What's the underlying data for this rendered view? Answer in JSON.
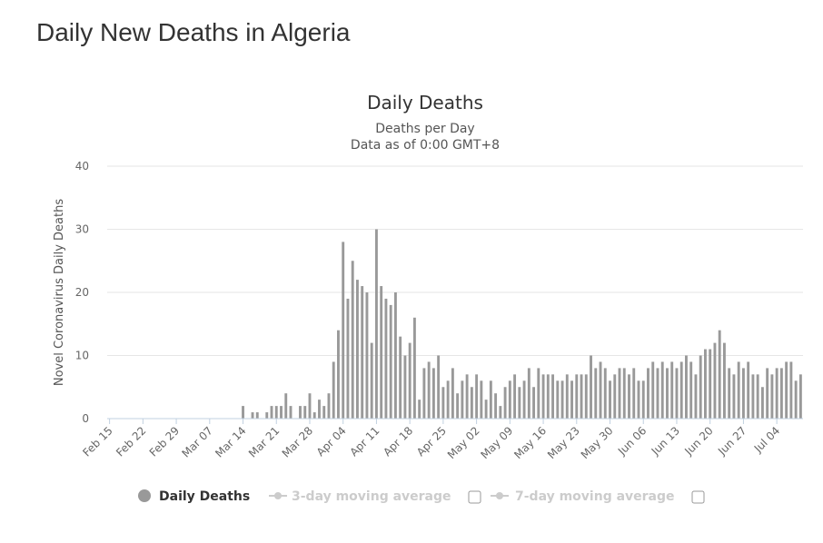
{
  "page": {
    "title": "Daily New Deaths in Algeria"
  },
  "chart_data": {
    "type": "bar",
    "title": "Daily Deaths",
    "subtitle_lines": [
      "Deaths per Day",
      "Data as of 0:00 GMT+8"
    ],
    "xlabel": "",
    "ylabel": "Novel Coronavirus Daily Deaths",
    "ylim": [
      0,
      40
    ],
    "yticks": [
      0,
      10,
      20,
      30,
      40
    ],
    "grid": true,
    "x_start_label": "Feb 15",
    "xtick_labels": [
      "Feb 15",
      "Feb 22",
      "Feb 29",
      "Mar 07",
      "Mar 14",
      "Mar 21",
      "Mar 28",
      "Apr 04",
      "Apr 11",
      "Apr 18",
      "Apr 25",
      "May 02",
      "May 09",
      "May 16",
      "May 23",
      "May 30",
      "Jun 06",
      "Jun 13",
      "Jun 20",
      "Jun 27",
      "Jul 04"
    ],
    "series": [
      {
        "name": "Daily Deaths",
        "color": "#999999",
        "values": [
          0,
          0,
          0,
          0,
          0,
          0,
          0,
          0,
          0,
          0,
          0,
          0,
          0,
          0,
          0,
          0,
          0,
          0,
          0,
          0,
          0,
          0,
          0,
          0,
          0,
          0,
          0,
          0,
          2,
          0,
          1,
          1,
          0,
          1,
          2,
          2,
          2,
          4,
          2,
          0,
          2,
          2,
          4,
          1,
          3,
          2,
          4,
          9,
          14,
          28,
          19,
          25,
          22,
          21,
          20,
          12,
          30,
          21,
          19,
          18,
          20,
          13,
          10,
          12,
          16,
          3,
          8,
          9,
          8,
          10,
          5,
          6,
          8,
          4,
          6,
          7,
          5,
          7,
          6,
          3,
          6,
          4,
          2,
          5,
          6,
          7,
          5,
          6,
          8,
          5,
          8,
          7,
          7,
          7,
          6,
          6,
          7,
          6,
          7,
          7,
          7,
          10,
          8,
          9,
          8,
          6,
          7,
          8,
          8,
          7,
          8,
          6,
          6,
          8,
          9,
          8,
          9,
          8,
          9,
          8,
          9,
          10,
          9,
          7,
          10,
          11,
          11,
          12,
          14,
          12,
          8,
          7,
          9,
          8,
          9,
          7,
          7,
          5,
          8,
          7,
          8,
          8,
          9,
          9,
          6,
          7
        ]
      },
      {
        "name": "3-day moving average",
        "color": "#cccccc",
        "visible": false
      },
      {
        "name": "7-day moving average",
        "color": "#cccccc",
        "visible": false
      }
    ],
    "legend_position": "bottom"
  }
}
